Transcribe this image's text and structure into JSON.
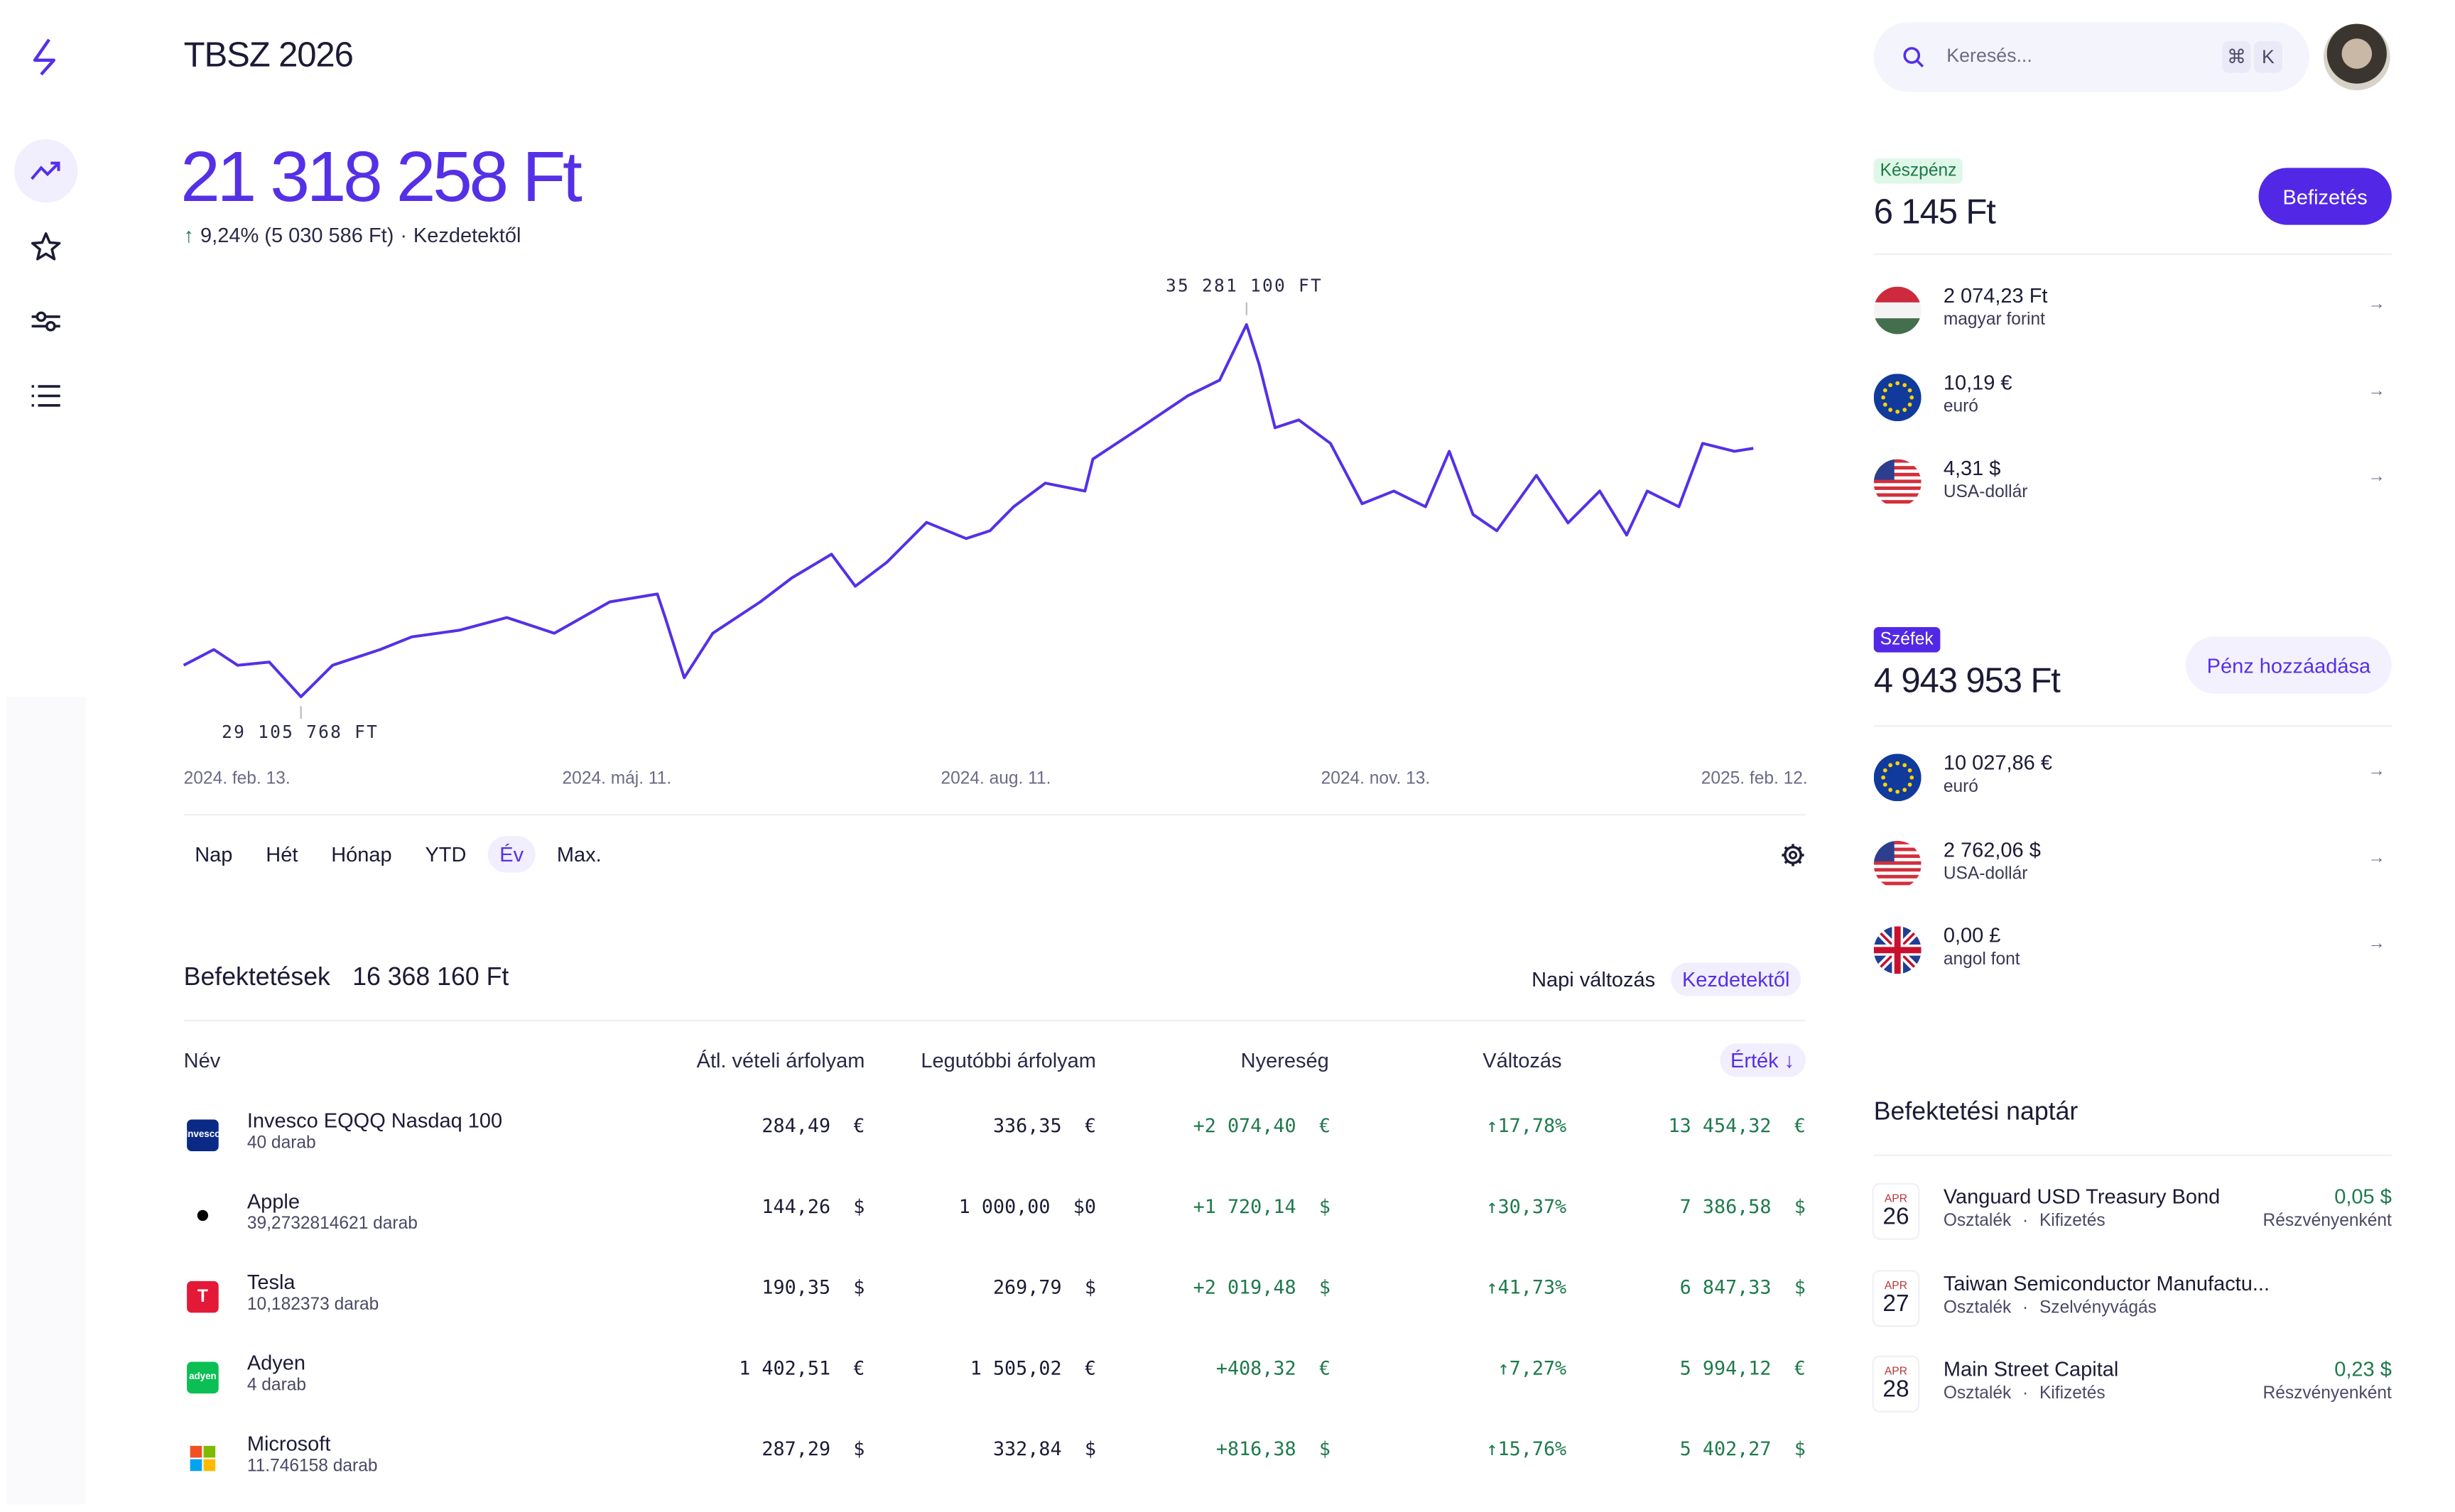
{
  "header": {
    "title": "TBSZ 2026"
  },
  "portfolio": {
    "value": "21 318 258 Ft",
    "change": "9,24% (5 030 586 Ft)",
    "separator": "·",
    "period": "Kezdetektől"
  },
  "search": {
    "placeholder": "Keresés...",
    "shortcut_cmd": "⌘",
    "shortcut_key": "K"
  },
  "chart_data": {
    "type": "line",
    "title": "",
    "max_label": "35 281 100 FT",
    "min_label": "29 105 768 FT",
    "x_ticks": [
      "2024. feb. 13.",
      "2024. máj. 11.",
      "2024. aug. 11.",
      "2024. nov. 13.",
      "2025. feb. 12."
    ],
    "ylim": [
      29105768,
      35281100
    ],
    "color": "#5530e6",
    "values": [
      29630000,
      29890000,
      29630000,
      29680000,
      29105768,
      29630000,
      29890000,
      30100000,
      30210000,
      30420000,
      30160000,
      30680000,
      30810000,
      30420000,
      29420000,
      30160000,
      30680000,
      31080000,
      31470000,
      30940000,
      31340000,
      32000000,
      31730000,
      31860000,
      32260000,
      32650000,
      32520000,
      33050000,
      33570000,
      34100000,
      34360000,
      35281100,
      34620000,
      33570000,
      33700000,
      33310000,
      32310000,
      32520000,
      32260000,
      33180000,
      32130000,
      31860000,
      32780000,
      31990000,
      32520000,
      31790000,
      32520000,
      32260000,
      33310000,
      33180000,
      33230000
    ],
    "x_index": [
      0,
      19,
      34,
      54,
      74,
      94,
      124,
      144,
      174,
      204,
      234,
      269,
      299,
      304,
      316,
      334,
      364,
      384,
      409,
      424,
      444,
      469,
      494,
      509,
      524,
      544,
      569,
      574,
      604,
      634,
      654,
      671,
      679,
      689,
      704,
      724,
      744,
      764,
      784,
      799,
      814,
      829,
      854,
      874,
      894,
      911,
      924,
      944,
      959,
      979,
      991
    ]
  },
  "ranges": [
    {
      "label": "Nap"
    },
    {
      "label": "Hét"
    },
    {
      "label": "Hónap"
    },
    {
      "label": "YTD"
    },
    {
      "label": "Év",
      "active": true
    },
    {
      "label": "Max."
    }
  ],
  "investments": {
    "title": "Befektetések",
    "total": "16 368 160 Ft",
    "toggle_daily": "Napi változás",
    "toggle_since": "Kezdetektől",
    "columns": {
      "name": "Név",
      "avg": "Átl. vételi árfolyam",
      "last": "Legutóbbi árfolyam",
      "gain": "Nyereség",
      "change": "Változás",
      "value": "Érték ↓"
    },
    "rows": [
      {
        "name": "Invesco EQQQ Nasdaq 100",
        "qty": "40 darab",
        "avg": "284,49  €",
        "last": "336,35  €",
        "gain": "+2 074,40  €",
        "change": "↑17,78%",
        "value": "13 454,32  €",
        "logo": "Invesco",
        "logo_color": "#0b2a86"
      },
      {
        "name": "Apple",
        "qty": "39,2732814621 darab",
        "avg": "144,26  $",
        "last": "1 000,00  $0",
        "gain": "+1 720,14  $",
        "change": "↑30,37%",
        "value": "7 386,58  $",
        "logo": "",
        "logo_color": "#ffffff"
      },
      {
        "name": "Tesla",
        "qty": "10,182373 darab",
        "avg": "190,35  $",
        "last": "269,79  $",
        "gain": "+2 019,48  $",
        "change": "↑41,73%",
        "value": "6 847,33  $",
        "logo": "T",
        "logo_color": "#e31937"
      },
      {
        "name": "Adyen",
        "qty": "4 darab",
        "avg": "1 402,51  €",
        "last": "1 505,02  €",
        "gain": "+408,32  €",
        "change": "↑7,27%",
        "value": "5 994,12  €",
        "logo": "adyen",
        "logo_color": "#0abf53"
      },
      {
        "name": "Microsoft",
        "qty": "11.746158 darab",
        "avg": "287,29  $",
        "last": "332,84  $",
        "gain": "+816,38  $",
        "change": "↑15,76%",
        "value": "5 402,27  $",
        "logo": "",
        "logo_color": "#ffffff"
      }
    ]
  },
  "cash": {
    "badge": "Készpénz",
    "amount": "6 145 Ft",
    "button": "Befizetés",
    "items": [
      {
        "value": "2 074,23 Ft",
        "name": "magyar forint",
        "flag": "hu"
      },
      {
        "value": "10,19 €",
        "name": "euró",
        "flag": "eu"
      },
      {
        "value": "4,31 $",
        "name": "USA-dollár",
        "flag": "us"
      }
    ]
  },
  "vaults": {
    "badge": "Széfek",
    "amount": "4 943 953 Ft",
    "button": "Pénz hozzáadása",
    "items": [
      {
        "value": "10 027,86 €",
        "name": "euró",
        "flag": "eu"
      },
      {
        "value": "2 762,06 $",
        "name": "USA-dollár",
        "flag": "us"
      },
      {
        "value": "0,00 £",
        "name": "angol font",
        "flag": "gb"
      }
    ]
  },
  "calendar": {
    "title": "Befektetési naptár",
    "events": [
      {
        "month": "APR",
        "day": "26",
        "name": "Vanguard USD Treasury Bond",
        "type": "Osztalék",
        "sep": "·",
        "kind": "Kifizetés",
        "amount": "0,05 $",
        "per": "Részvényenként"
      },
      {
        "month": "APR",
        "day": "27",
        "name": "Taiwan Semiconductor Manufactu...",
        "type": "Osztalék",
        "sep": "·",
        "kind": "Szelvényvágás",
        "amount": "",
        "per": ""
      },
      {
        "month": "APR",
        "day": "28",
        "name": "Main Street Capital",
        "type": "Osztalék",
        "sep": "·",
        "kind": "Kifizetés",
        "amount": "0,23 $",
        "per": "Részvényenként"
      }
    ]
  }
}
